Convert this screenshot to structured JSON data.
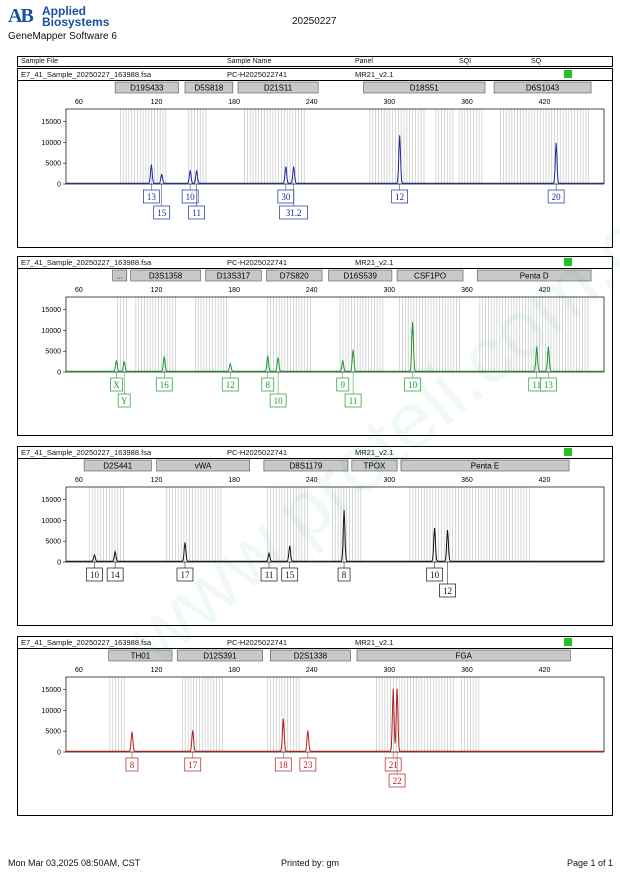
{
  "header": {
    "logo_mark": "AB",
    "company_line1": "Applied",
    "company_line2": "Biosystems",
    "software": "GeneMapper Software 6",
    "report_title": "20250227",
    "columns": [
      "Sample File",
      "Sample Name",
      "Panel",
      "SQI",
      "SQ"
    ]
  },
  "footer": {
    "date": "Mon Mar 03,2025 08:50AM, CST",
    "printed_by": "Printed by: gm",
    "page": "Page 1 of 1"
  },
  "watermark": "www.proteli.com.cn",
  "chart_data": [
    {
      "type": "line",
      "sample_file": "E7_41_Sample_20250227_163988.fsa",
      "sample_name": "PC-H2025022741",
      "panel": "MR21_v2.1",
      "color": "#1c2a9e",
      "x_ticks": [
        60,
        120,
        180,
        240,
        300,
        360,
        420
      ],
      "y_ticks": [
        0,
        5000,
        10000,
        15000
      ],
      "xlim": [
        50,
        466
      ],
      "ylim": [
        0,
        18000
      ],
      "markers": [
        {
          "label": "D19S433",
          "x1": 88,
          "x2": 137
        },
        {
          "label": "D5S818",
          "x1": 142,
          "x2": 179
        },
        {
          "label": "D21S11",
          "x1": 183,
          "x2": 245
        },
        {
          "label": "D18S51",
          "x1": 280,
          "x2": 374
        },
        {
          "label": "D6S1043",
          "x1": 381,
          "x2": 456
        }
      ],
      "peaks": [
        {
          "x": 116,
          "h": 4500,
          "label": "13",
          "row": 0
        },
        {
          "x": 124,
          "h": 2200,
          "label": "15",
          "row": 1
        },
        {
          "x": 146,
          "h": 3100,
          "label": "10",
          "row": 0
        },
        {
          "x": 151,
          "h": 3100,
          "label": "11",
          "row": 1
        },
        {
          "x": 220,
          "h": 4000,
          "label": "30",
          "row": 0
        },
        {
          "x": 226,
          "h": 4000,
          "label": "31.2",
          "row": 1
        },
        {
          "x": 308,
          "h": 11500,
          "label": "12",
          "row": 0
        },
        {
          "x": 429,
          "h": 9700,
          "label": "20",
          "row": 0
        }
      ],
      "bins": [
        [
          92,
          128
        ],
        [
          145,
          160
        ],
        [
          188,
          236
        ],
        [
          285,
          328
        ],
        [
          336,
          350
        ],
        [
          354,
          372
        ],
        [
          386,
          455
        ]
      ]
    },
    {
      "type": "line",
      "sample_file": "E7_41_Sample_20250227_163988.fsa",
      "sample_name": "PC-H2025022741",
      "panel": "MR21_v2.1",
      "color": "#1f9a2c",
      "x_ticks": [
        60,
        120,
        180,
        240,
        300,
        360,
        420
      ],
      "y_ticks": [
        0,
        5000,
        10000,
        15000
      ],
      "xlim": [
        50,
        466
      ],
      "ylim": [
        0,
        18000
      ],
      "markers": [
        {
          "label": "...",
          "x1": 86,
          "x2": 97
        },
        {
          "label": "D3S1358",
          "x1": 100,
          "x2": 154
        },
        {
          "label": "D13S317",
          "x1": 158,
          "x2": 201
        },
        {
          "label": "D7S820",
          "x1": 205,
          "x2": 248
        },
        {
          "label": "D16S539",
          "x1": 253,
          "x2": 302
        },
        {
          "label": "CSF1PO",
          "x1": 306,
          "x2": 357
        },
        {
          "label": "Penta D",
          "x1": 368,
          "x2": 456
        }
      ],
      "peaks": [
        {
          "x": 89,
          "h": 2600,
          "label": "X",
          "row": 0
        },
        {
          "x": 95,
          "h": 2400,
          "label": "Y",
          "row": 1
        },
        {
          "x": 126,
          "h": 3600,
          "label": "16",
          "row": 0
        },
        {
          "x": 177,
          "h": 1800,
          "label": "12",
          "row": 0
        },
        {
          "x": 206,
          "h": 3700,
          "label": "8",
          "row": 0
        },
        {
          "x": 214,
          "h": 3300,
          "label": "10",
          "row": 1
        },
        {
          "x": 264,
          "h": 2600,
          "label": "9",
          "row": 0
        },
        {
          "x": 272,
          "h": 5200,
          "label": "11",
          "row": 1
        },
        {
          "x": 318,
          "h": 11800,
          "label": "10",
          "row": 0
        },
        {
          "x": 414,
          "h": 5900,
          "label": "11",
          "row": 0
        },
        {
          "x": 423,
          "h": 5900,
          "label": "13",
          "row": 0
        }
      ],
      "bins": [
        [
          90,
          98
        ],
        [
          104,
          136
        ],
        [
          150,
          176
        ],
        [
          206,
          240
        ],
        [
          262,
          296
        ],
        [
          308,
          356
        ],
        [
          370,
          455
        ]
      ]
    },
    {
      "type": "line",
      "sample_file": "E7_41_Sample_20250227_163988.fsa",
      "sample_name": "PC-H2025022741",
      "panel": "MR21_v2.1",
      "color": "#111111",
      "x_ticks": [
        60,
        120,
        180,
        240,
        300,
        360,
        420
      ],
      "y_ticks": [
        0,
        5000,
        10000,
        15000
      ],
      "xlim": [
        50,
        466
      ],
      "ylim": [
        0,
        18000
      ],
      "markers": [
        {
          "label": "D2S441",
          "x1": 64,
          "x2": 116
        },
        {
          "label": "vWA",
          "x1": 120,
          "x2": 192
        },
        {
          "label": "D8S1179",
          "x1": 203,
          "x2": 268
        },
        {
          "label": "TPOX",
          "x1": 271,
          "x2": 306
        },
        {
          "label": "Penta E",
          "x1": 309,
          "x2": 439
        }
      ],
      "peaks": [
        {
          "x": 72,
          "h": 1500,
          "label": "10",
          "row": 0
        },
        {
          "x": 88,
          "h": 2300,
          "label": "14",
          "row": 0
        },
        {
          "x": 142,
          "h": 4500,
          "label": "17",
          "row": 0
        },
        {
          "x": 207,
          "h": 1900,
          "label": "11",
          "row": 0
        },
        {
          "x": 223,
          "h": 3700,
          "label": "15",
          "row": 0
        },
        {
          "x": 265,
          "h": 12300,
          "label": "8",
          "row": 0
        },
        {
          "x": 335,
          "h": 8000,
          "label": "10",
          "row": 0
        },
        {
          "x": 345,
          "h": 7500,
          "label": "12",
          "row": 1
        }
      ],
      "bins": [
        [
          68,
          96
        ],
        [
          128,
          170
        ],
        [
          206,
          238
        ],
        [
          256,
          278
        ],
        [
          316,
          410
        ]
      ]
    },
    {
      "type": "line",
      "sample_file": "E7_41_Sample_20250227_163988.fsa",
      "sample_name": "PC-H2025022741",
      "panel": "MR21_v2.1",
      "color": "#b51d1d",
      "x_ticks": [
        60,
        120,
        180,
        240,
        300,
        360,
        420
      ],
      "y_ticks": [
        0,
        5000,
        10000,
        15000
      ],
      "xlim": [
        50,
        466
      ],
      "ylim": [
        0,
        18000
      ],
      "markers": [
        {
          "label": "TH01",
          "x1": 83,
          "x2": 132
        },
        {
          "label": "D12S391",
          "x1": 136,
          "x2": 202
        },
        {
          "label": "D2S1338",
          "x1": 208,
          "x2": 270
        },
        {
          "label": "FGA",
          "x1": 275,
          "x2": 440
        }
      ],
      "peaks": [
        {
          "x": 101,
          "h": 4700,
          "label": "8",
          "row": 0
        },
        {
          "x": 148,
          "h": 5000,
          "label": "17",
          "row": 0
        },
        {
          "x": 218,
          "h": 7800,
          "label": "18",
          "row": 0
        },
        {
          "x": 237,
          "h": 5000,
          "label": "23",
          "row": 0
        },
        {
          "x": 303,
          "h": 15000,
          "label": "21",
          "row": 0
        },
        {
          "x": 306,
          "h": 15000,
          "label": "22",
          "row": 1
        }
      ],
      "bins": [
        [
          84,
          96
        ],
        [
          140,
          172
        ],
        [
          206,
          232
        ],
        [
          290,
          350
        ],
        [
          356,
          370
        ]
      ]
    }
  ]
}
